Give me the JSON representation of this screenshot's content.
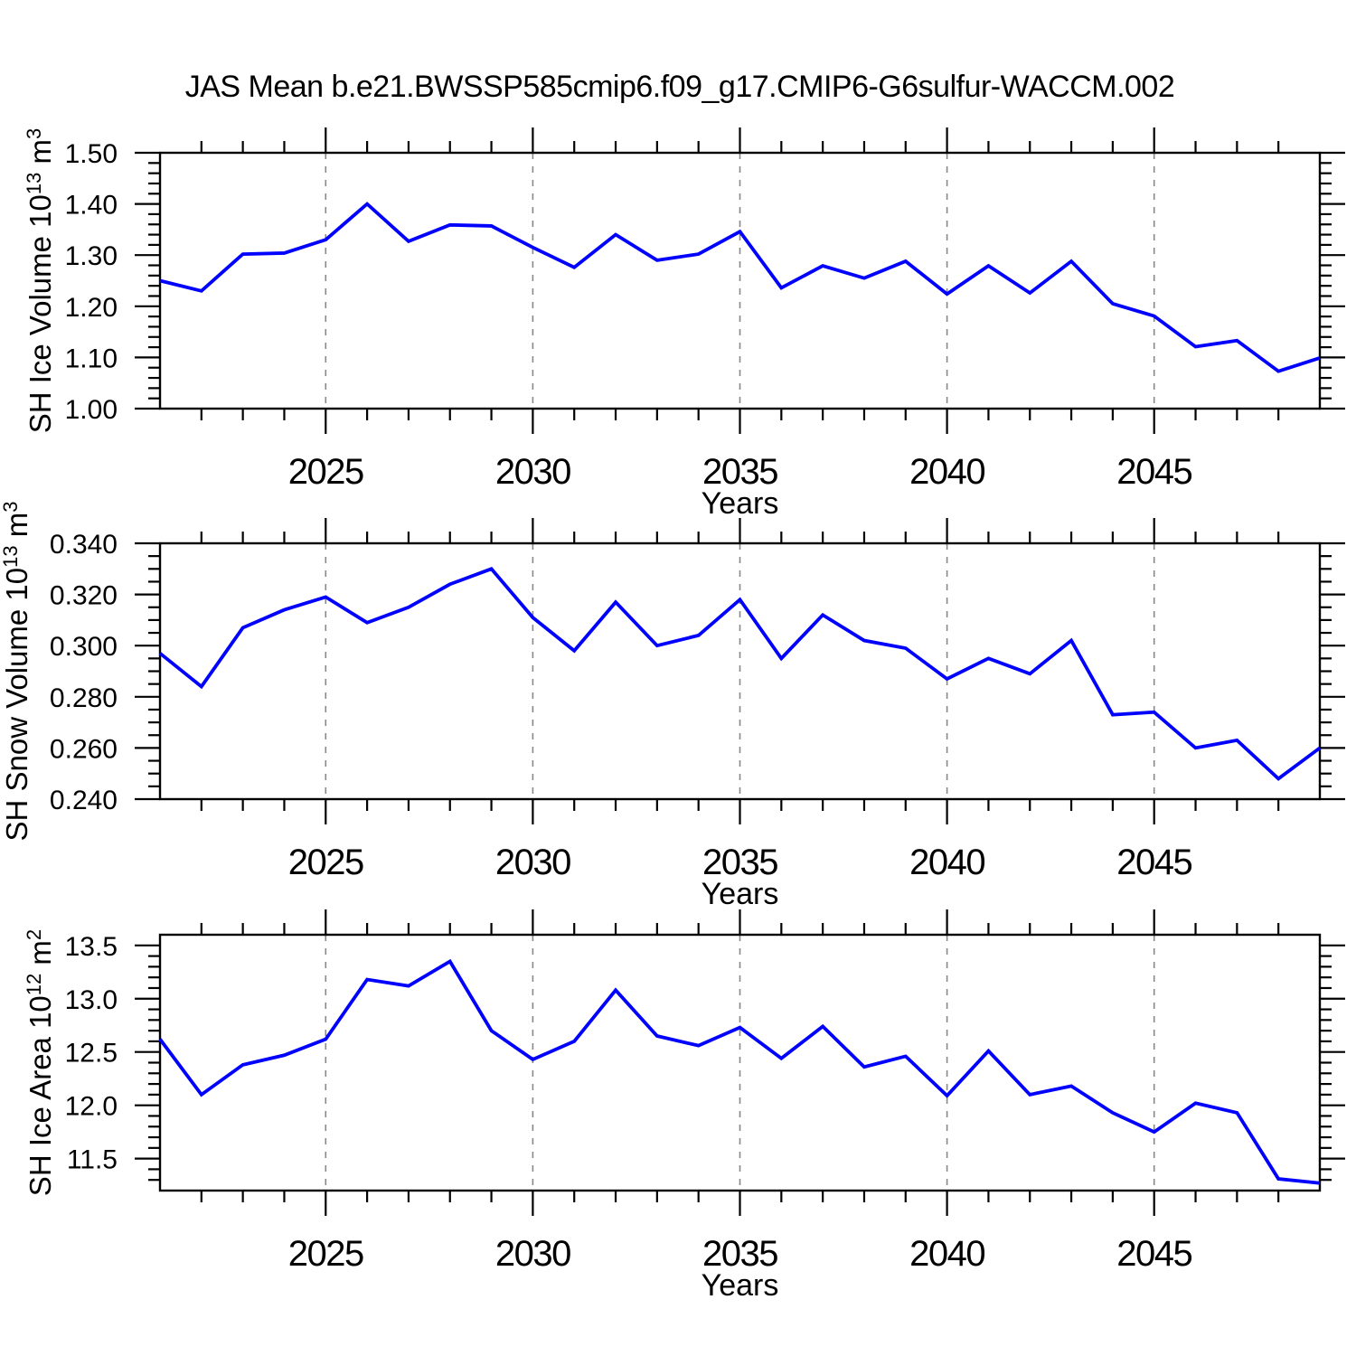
{
  "title": "JAS Mean b.e21.BWSSP585cmip6.f09_g17.CMIP6-G6sulfur-WACCM.002",
  "colors": {
    "line": "#0000ff",
    "frame": "#000000",
    "grid": "#888888",
    "text": "#000000",
    "background": "#ffffff"
  },
  "chart_data": [
    {
      "type": "line",
      "name": "sh-ice-volume",
      "ylabel": "SH Ice Volume 10^13 m^3",
      "ylabel_parts": [
        [
          "text",
          "SH Ice Volume 10"
        ],
        [
          "sup",
          "13"
        ],
        [
          "text",
          " m"
        ],
        [
          "sup",
          "3"
        ]
      ],
      "xlabel": "Years",
      "x": [
        2021,
        2022,
        2023,
        2024,
        2025,
        2026,
        2027,
        2028,
        2029,
        2030,
        2031,
        2032,
        2033,
        2034,
        2035,
        2036,
        2037,
        2038,
        2039,
        2040,
        2041,
        2042,
        2043,
        2044,
        2045,
        2046,
        2047,
        2048,
        2049
      ],
      "values": [
        1.25,
        1.23,
        1.302,
        1.304,
        1.33,
        1.4,
        1.327,
        1.359,
        1.357,
        1.315,
        1.276,
        1.34,
        1.29,
        1.302,
        1.346,
        1.236,
        1.279,
        1.255,
        1.288,
        1.224,
        1.279,
        1.226,
        1.288,
        1.205,
        1.181,
        1.121,
        1.133,
        1.073,
        1.099
      ],
      "xlim": [
        2021,
        2049
      ],
      "xticks": [
        2025,
        2030,
        2035,
        2040,
        2045
      ],
      "xtick_labels": [
        "2025",
        "2030",
        "2035",
        "2040",
        "2045"
      ],
      "x_minor_step": 1,
      "ylim": [
        1.0,
        1.5
      ],
      "yticks": [
        1.0,
        1.1,
        1.2,
        1.3,
        1.4,
        1.5
      ],
      "ytick_labels": [
        "1.00",
        "1.10",
        "1.20",
        "1.30",
        "1.40",
        "1.50"
      ],
      "y_minor_step": 0.02,
      "grid_vertical_dashed_at": [
        2025,
        2030,
        2035,
        2040,
        2045
      ],
      "line_color": "#0000ff"
    },
    {
      "type": "line",
      "name": "sh-snow-volume",
      "ylabel": "SH Snow Volume 10^13 m^3",
      "ylabel_parts": [
        [
          "text",
          "SH Snow Volume 10"
        ],
        [
          "sup",
          "13"
        ],
        [
          "text",
          " m"
        ],
        [
          "sup",
          "3"
        ]
      ],
      "xlabel": "Years",
      "x": [
        2021,
        2022,
        2023,
        2024,
        2025,
        2026,
        2027,
        2028,
        2029,
        2030,
        2031,
        2032,
        2033,
        2034,
        2035,
        2036,
        2037,
        2038,
        2039,
        2040,
        2041,
        2042,
        2043,
        2044,
        2045,
        2046,
        2047,
        2048,
        2049
      ],
      "values": [
        0.297,
        0.284,
        0.307,
        0.314,
        0.319,
        0.309,
        0.315,
        0.324,
        0.33,
        0.311,
        0.298,
        0.317,
        0.3,
        0.304,
        0.318,
        0.295,
        0.312,
        0.302,
        0.299,
        0.287,
        0.295,
        0.289,
        0.302,
        0.273,
        0.274,
        0.26,
        0.263,
        0.248,
        0.26
      ],
      "xlim": [
        2021,
        2049
      ],
      "xticks": [
        2025,
        2030,
        2035,
        2040,
        2045
      ],
      "xtick_labels": [
        "2025",
        "2030",
        "2035",
        "2040",
        "2045"
      ],
      "x_minor_step": 1,
      "ylim": [
        0.24,
        0.34
      ],
      "yticks": [
        0.24,
        0.26,
        0.28,
        0.3,
        0.32,
        0.34
      ],
      "ytick_labels": [
        "0.240",
        "0.260",
        "0.280",
        "0.300",
        "0.320",
        "0.340"
      ],
      "y_minor_step": 0.005,
      "grid_vertical_dashed_at": [
        2025,
        2030,
        2035,
        2040,
        2045
      ],
      "line_color": "#0000ff"
    },
    {
      "type": "line",
      "name": "sh-ice-area",
      "ylabel": "SH Ice Area 10^12 m^2",
      "ylabel_parts": [
        [
          "text",
          "SH Ice Area 10"
        ],
        [
          "sup",
          "12"
        ],
        [
          "text",
          " m"
        ],
        [
          "sup",
          "2"
        ]
      ],
      "xlabel": "Years",
      "x": [
        2021,
        2022,
        2023,
        2024,
        2025,
        2026,
        2027,
        2028,
        2029,
        2030,
        2031,
        2032,
        2033,
        2034,
        2035,
        2036,
        2037,
        2038,
        2039,
        2040,
        2041,
        2042,
        2043,
        2044,
        2045,
        2046,
        2047,
        2048,
        2049
      ],
      "values": [
        12.62,
        12.1,
        12.38,
        12.47,
        12.62,
        13.18,
        13.12,
        13.35,
        12.7,
        12.43,
        12.6,
        13.08,
        12.65,
        12.56,
        12.73,
        12.44,
        12.74,
        12.36,
        12.46,
        12.09,
        12.51,
        12.1,
        12.18,
        11.93,
        11.75,
        12.02,
        11.93,
        11.31,
        11.27
      ],
      "xlim": [
        2021,
        2049
      ],
      "xticks": [
        2025,
        2030,
        2035,
        2040,
        2045
      ],
      "xtick_labels": [
        "2025",
        "2030",
        "2035",
        "2040",
        "2045"
      ],
      "x_minor_step": 1,
      "ylim": [
        11.2,
        13.6
      ],
      "yticks": [
        11.5,
        12.0,
        12.5,
        13.0,
        13.5
      ],
      "ytick_labels": [
        "11.5",
        "12.0",
        "12.5",
        "13.0",
        "13.5"
      ],
      "y_minor_step": 0.1,
      "grid_vertical_dashed_at": [
        2025,
        2030,
        2035,
        2040,
        2045
      ],
      "line_color": "#0000ff"
    }
  ]
}
